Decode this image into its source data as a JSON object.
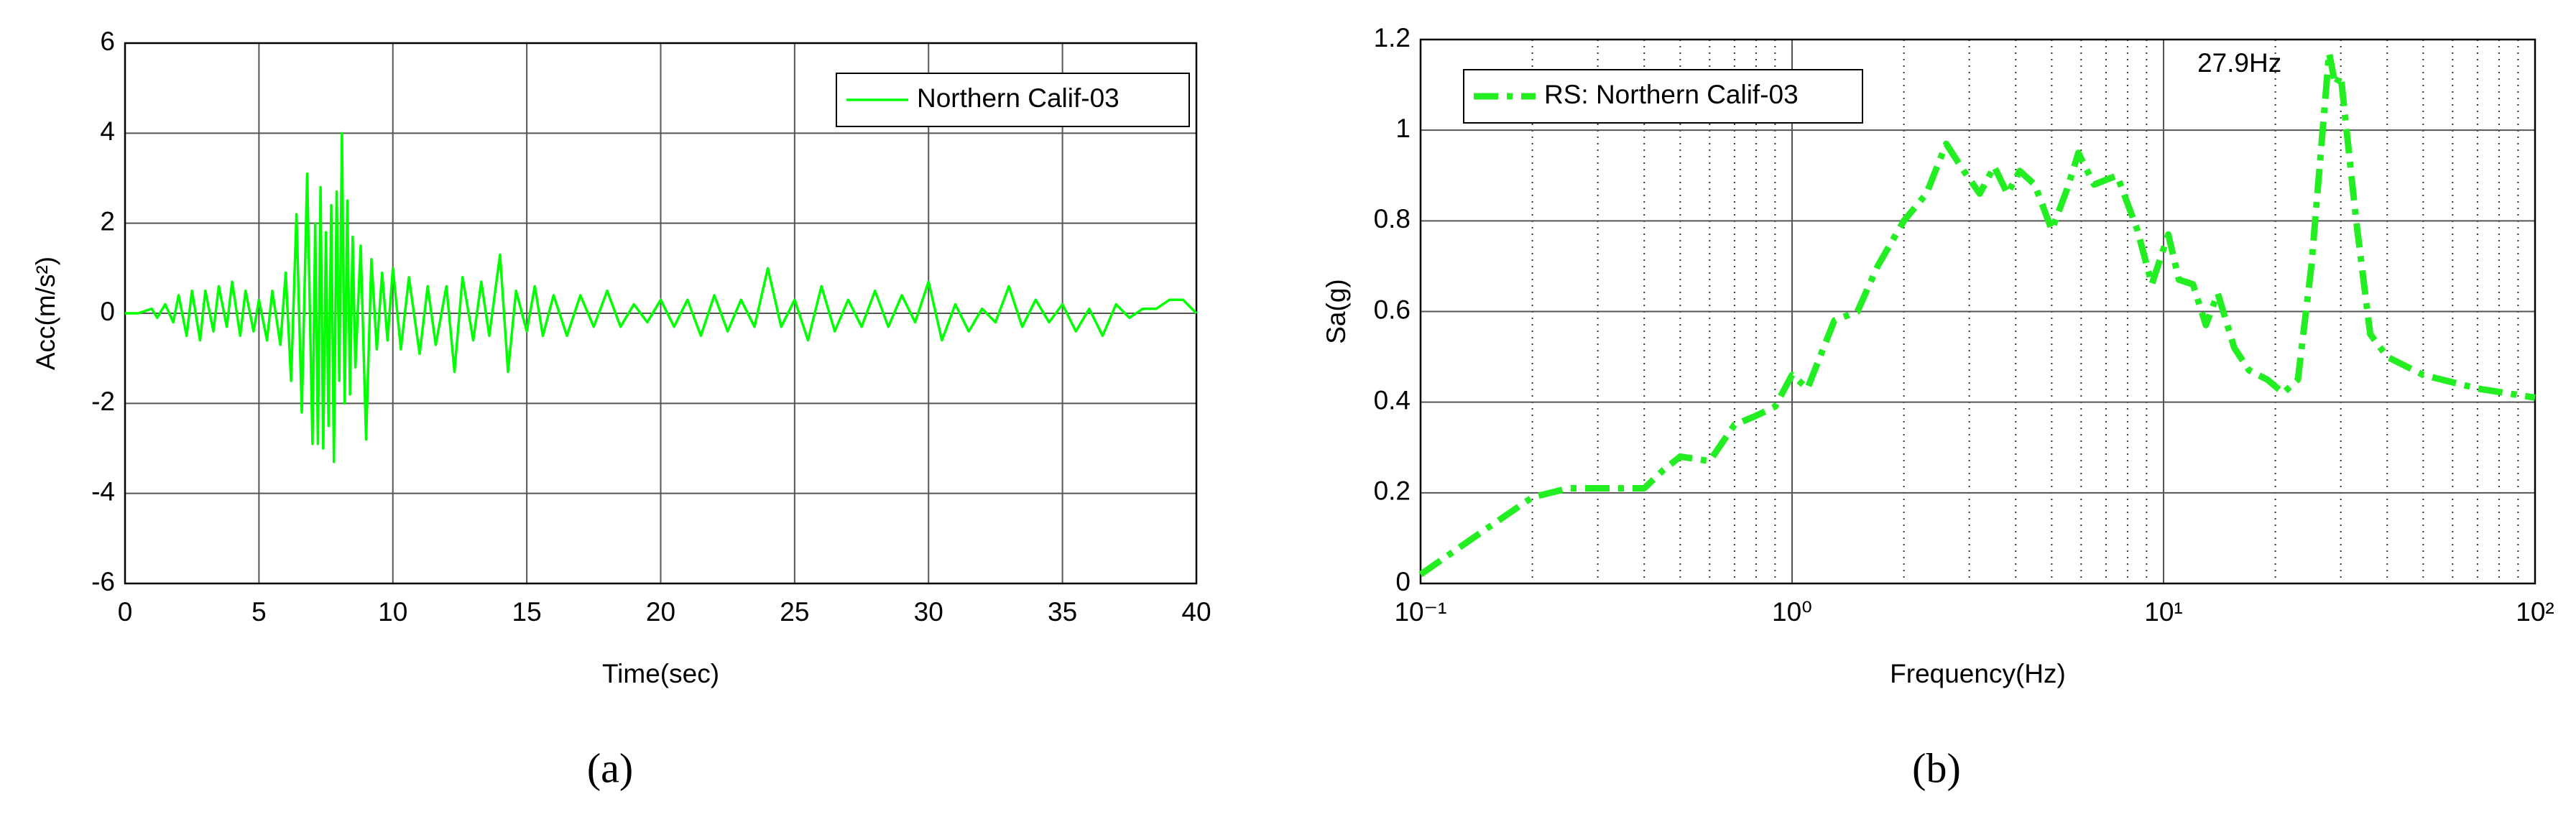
{
  "chart_data": [
    {
      "type": "line",
      "caption": "(a)",
      "xlabel": "Time(sec)",
      "ylabel": "Acc(m/s²)",
      "xlim": [
        0,
        40
      ],
      "xticks": [
        0,
        5,
        10,
        15,
        20,
        25,
        30,
        35,
        40
      ],
      "ylim": [
        -6,
        6
      ],
      "yticks": [
        -6,
        -4,
        -2,
        0,
        2,
        4,
        6
      ],
      "grid": true,
      "legend": "upper-right",
      "x": [
        0,
        0.5,
        1,
        1.2,
        1.5,
        1.8,
        2,
        2.3,
        2.5,
        2.8,
        3,
        3.3,
        3.5,
        3.8,
        4,
        4.3,
        4.5,
        4.8,
        5,
        5.3,
        5.5,
        5.8,
        6,
        6.2,
        6.4,
        6.6,
        6.8,
        7,
        7.1,
        7.2,
        7.3,
        7.4,
        7.5,
        7.6,
        7.7,
        7.8,
        7.9,
        8,
        8.1,
        8.2,
        8.3,
        8.4,
        8.5,
        8.6,
        8.8,
        9,
        9.2,
        9.4,
        9.6,
        9.8,
        10,
        10.3,
        10.6,
        11,
        11.3,
        11.6,
        12,
        12.3,
        12.6,
        13,
        13.3,
        13.6,
        14,
        14.3,
        14.6,
        15,
        15.3,
        15.6,
        16,
        16.5,
        17,
        17.5,
        18,
        18.5,
        19,
        19.5,
        20,
        20.5,
        21,
        21.5,
        22,
        22.5,
        23,
        23.5,
        24,
        24.5,
        25,
        25.5,
        26,
        26.5,
        27,
        27.5,
        28,
        28.5,
        29,
        29.5,
        30,
        30.5,
        31,
        31.5,
        32,
        32.5,
        33,
        33.5,
        34,
        34.5,
        35,
        35.5,
        36,
        36.5,
        37,
        37.5,
        38,
        38.5,
        39,
        39.5,
        40
      ],
      "series": [
        {
          "name": "Northern Calif-03",
          "color": "#00ff00",
          "style": "solid",
          "values": [
            0,
            0,
            0.1,
            -0.1,
            0.2,
            -0.2,
            0.4,
            -0.5,
            0.5,
            -0.6,
            0.5,
            -0.4,
            0.6,
            -0.3,
            0.7,
            -0.5,
            0.5,
            -0.4,
            0.3,
            -0.6,
            0.5,
            -0.7,
            0.9,
            -1.5,
            2.2,
            -2.2,
            3.1,
            -2.9,
            2.0,
            -2.9,
            2.8,
            -3.0,
            1.8,
            -2.5,
            2.4,
            -3.3,
            2.7,
            -1.5,
            4.0,
            -2.0,
            2.5,
            -1.8,
            1.7,
            -1.2,
            1.5,
            -2.8,
            1.2,
            -0.8,
            0.9,
            -0.6,
            1.0,
            -0.8,
            0.8,
            -0.9,
            0.6,
            -0.7,
            0.6,
            -1.3,
            0.8,
            -0.6,
            0.7,
            -0.5,
            1.3,
            -1.3,
            0.5,
            -0.4,
            0.6,
            -0.5,
            0.4,
            -0.5,
            0.4,
            -0.3,
            0.5,
            -0.3,
            0.2,
            -0.2,
            0.3,
            -0.3,
            0.3,
            -0.5,
            0.4,
            -0.4,
            0.3,
            -0.3,
            1.0,
            -0.3,
            0.3,
            -0.6,
            0.6,
            -0.4,
            0.3,
            -0.3,
            0.5,
            -0.3,
            0.4,
            -0.2,
            0.7,
            -0.6,
            0.2,
            -0.4,
            0.1,
            -0.2,
            0.6,
            -0.3,
            0.3,
            -0.2,
            0.2,
            -0.4,
            0.1,
            -0.5,
            0.2,
            -0.1,
            0.1,
            0.1,
            0.3,
            0.3,
            0.0
          ]
        }
      ]
    },
    {
      "type": "line",
      "caption": "(b)",
      "xlabel": "Frequency(Hz)",
      "ylabel": "Sa(g)",
      "xscale": "log",
      "xlim": [
        0.1,
        100
      ],
      "xticks": [
        {
          "value": 0.1,
          "label": "10⁻¹"
        },
        {
          "value": 1,
          "label": "10⁰"
        },
        {
          "value": 10,
          "label": "10¹"
        },
        {
          "value": 100,
          "label": "10²"
        }
      ],
      "xminorticks": [
        0.2,
        0.3,
        0.4,
        0.5,
        0.6,
        0.7,
        0.8,
        0.9,
        2,
        3,
        4,
        5,
        6,
        7,
        8,
        9,
        20,
        30,
        40,
        50,
        60,
        70,
        80,
        90
      ],
      "ylim": [
        0,
        1.2
      ],
      "yticks": [
        0,
        0.2,
        0.4,
        0.6,
        0.8,
        1,
        1.2
      ],
      "grid": true,
      "legend": "upper-left",
      "annotation": "27.9Hz",
      "x": [
        0.1,
        0.15,
        0.2,
        0.25,
        0.3,
        0.4,
        0.45,
        0.5,
        0.6,
        0.7,
        0.8,
        0.9,
        1.0,
        1.1,
        1.3,
        1.5,
        1.7,
        2.0,
        2.3,
        2.6,
        2.9,
        3.2,
        3.5,
        3.8,
        4.1,
        4.5,
        5.0,
        5.5,
        5.9,
        6.5,
        7.5,
        8.5,
        9.3,
        10.3,
        11,
        12,
        13,
        14,
        15.5,
        17,
        19,
        21,
        23,
        25,
        27.9,
        29,
        30,
        33,
        36,
        40,
        50,
        70,
        100
      ],
      "series": [
        {
          "name": "RS: Northern Calif-03",
          "color": "#22ee22",
          "style": "dashdot",
          "values": [
            0.02,
            0.12,
            0.19,
            0.21,
            0.21,
            0.21,
            0.25,
            0.28,
            0.27,
            0.35,
            0.37,
            0.39,
            0.46,
            0.43,
            0.58,
            0.6,
            0.7,
            0.8,
            0.86,
            0.97,
            0.91,
            0.86,
            0.92,
            0.86,
            0.91,
            0.88,
            0.78,
            0.87,
            0.95,
            0.88,
            0.9,
            0.78,
            0.66,
            0.77,
            0.67,
            0.66,
            0.57,
            0.64,
            0.52,
            0.47,
            0.45,
            0.42,
            0.45,
            0.7,
            1.17,
            1.1,
            1.12,
            0.8,
            0.55,
            0.5,
            0.46,
            0.43,
            0.41
          ]
        }
      ]
    }
  ]
}
